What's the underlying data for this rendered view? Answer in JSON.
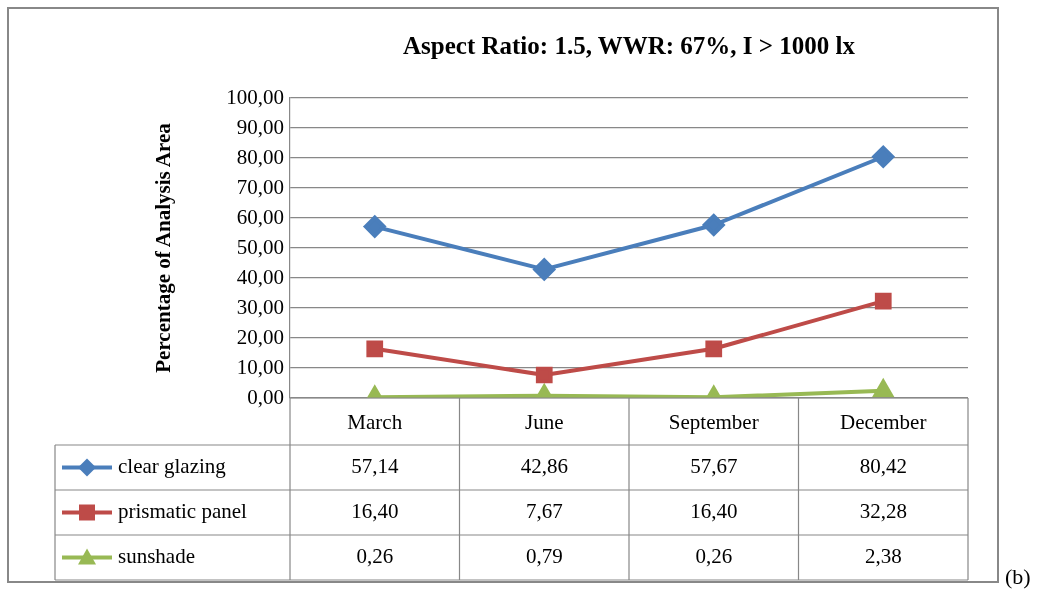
{
  "chart_data": {
    "type": "line",
    "title": "Aspect Ratio: 1.5, WWR: 67%, I > 1000 lx",
    "ylabel": "Percentage of Analysis Area",
    "categories": [
      "March",
      "June",
      "September",
      "December"
    ],
    "series": [
      {
        "name": "clear glazing",
        "color": "#4a7ebb",
        "marker": "diamond",
        "values": [
          57.14,
          42.86,
          57.67,
          80.42
        ],
        "value_labels": [
          "57,14",
          "42,86",
          "57,67",
          "80,42"
        ]
      },
      {
        "name": "prismatic panel",
        "color": "#be4b48",
        "marker": "square",
        "values": [
          16.4,
          7.67,
          16.4,
          32.28
        ],
        "value_labels": [
          "16,40",
          "7,67",
          "16,40",
          "32,28"
        ]
      },
      {
        "name": "sunshade",
        "color": "#98b954",
        "marker": "triangle",
        "values": [
          0.26,
          0.79,
          0.26,
          2.38
        ],
        "value_labels": [
          "0,26",
          "0,79",
          "0,26",
          "2,38"
        ]
      }
    ],
    "ylim": [
      0,
      100
    ],
    "yticks": [
      {
        "value": 0,
        "label": "0,00"
      },
      {
        "value": 10,
        "label": "10,00"
      },
      {
        "value": 20,
        "label": "20,00"
      },
      {
        "value": 30,
        "label": "30,00"
      },
      {
        "value": 40,
        "label": "40,00"
      },
      {
        "value": 50,
        "label": "50,00"
      },
      {
        "value": 60,
        "label": "60,00"
      },
      {
        "value": 70,
        "label": "70,00"
      },
      {
        "value": 80,
        "label": "80,00"
      },
      {
        "value": 90,
        "label": "90,00"
      },
      {
        "value": 100,
        "label": "100,00"
      }
    ],
    "grid": "y",
    "legend": "bottom",
    "annotations": [
      "(b)"
    ]
  }
}
